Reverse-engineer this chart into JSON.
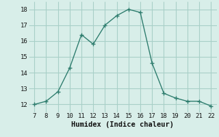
{
  "x": [
    7,
    8,
    9,
    10,
    11,
    12,
    13,
    14,
    15,
    16,
    17,
    18,
    19,
    20,
    21,
    22
  ],
  "y": [
    12.0,
    12.2,
    12.8,
    14.3,
    16.4,
    15.8,
    17.0,
    17.6,
    18.0,
    17.8,
    14.6,
    12.7,
    12.4,
    12.2,
    12.2,
    11.9
  ],
  "line_color": "#2e7d6e",
  "marker": "+",
  "marker_size": 4,
  "linewidth": 1.0,
  "xlabel": "Humidex (Indice chaleur)",
  "xlim": [
    6.5,
    22.5
  ],
  "ylim": [
    11.5,
    18.5
  ],
  "xticks": [
    7,
    8,
    9,
    10,
    11,
    12,
    13,
    14,
    15,
    16,
    17,
    18,
    19,
    20,
    21,
    22
  ],
  "yticks": [
    12,
    13,
    14,
    15,
    16,
    17,
    18
  ],
  "grid_color": "#a8cfc7",
  "background_color": "#d8eee9",
  "tick_fontsize": 6.5,
  "label_fontsize": 7.5
}
